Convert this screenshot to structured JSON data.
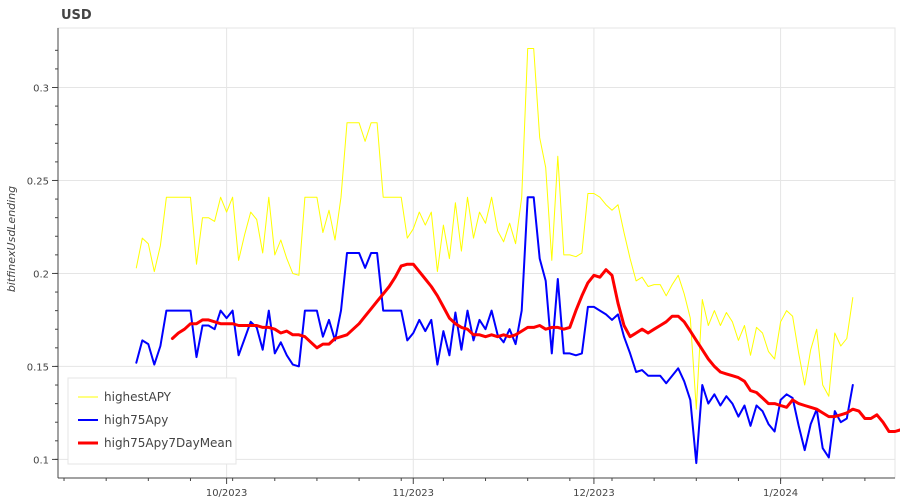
{
  "chart_data": {
    "type": "line",
    "title": "USD",
    "ylabel": "bitfinexUsdLending",
    "xlabel": "",
    "x_ticks": [
      {
        "label": "10/2023",
        "date": "2023-10-01"
      },
      {
        "label": "11/2023",
        "date": "2023-11-01"
      },
      {
        "label": "12/2023",
        "date": "2023-12-01"
      },
      {
        "label": "1/2024",
        "date": "2024-01-01"
      }
    ],
    "y_ticks": [
      "0.1",
      "0.15",
      "0.2",
      "0.25",
      "0.3"
    ],
    "ylim": [
      0.09,
      0.332
    ],
    "xlim": [
      "2023-09-03",
      "2024-01-20"
    ],
    "grid": true,
    "legend_position": "bottom-left",
    "series": [
      {
        "name": "highestAPY",
        "color": "#ffff00",
        "line_width": 1,
        "start_date": "2023-09-16",
        "values": [
          0.203,
          0.219,
          0.216,
          0.201,
          0.215,
          0.241,
          0.241,
          0.241,
          0.241,
          0.241,
          0.205,
          0.23,
          0.23,
          0.228,
          0.241,
          0.233,
          0.241,
          0.207,
          0.221,
          0.233,
          0.229,
          0.211,
          0.241,
          0.21,
          0.218,
          0.208,
          0.2,
          0.199,
          0.241,
          0.241,
          0.241,
          0.222,
          0.234,
          0.218,
          0.241,
          0.281,
          0.281,
          0.281,
          0.271,
          0.281,
          0.281,
          0.241,
          0.241,
          0.241,
          0.241,
          0.219,
          0.224,
          0.233,
          0.226,
          0.233,
          0.201,
          0.226,
          0.208,
          0.238,
          0.212,
          0.241,
          0.219,
          0.233,
          0.227,
          0.241,
          0.223,
          0.217,
          0.227,
          0.216,
          0.241,
          0.321,
          0.321,
          0.273,
          0.257,
          0.207,
          0.263,
          0.21,
          0.21,
          0.209,
          0.211,
          0.243,
          0.243,
          0.241,
          0.237,
          0.234,
          0.237,
          0.222,
          0.208,
          0.196,
          0.198,
          0.193,
          0.194,
          0.194,
          0.188,
          0.194,
          0.199,
          0.189,
          0.176,
          0.127,
          0.186,
          0.172,
          0.18,
          0.172,
          0.179,
          0.174,
          0.164,
          0.172,
          0.156,
          0.171,
          0.168,
          0.158,
          0.154,
          0.174,
          0.18,
          0.177,
          0.157,
          0.14,
          0.159,
          0.17,
          0.14,
          0.134,
          0.168,
          0.161,
          0.165,
          0.187
        ]
      },
      {
        "name": "high75Apy",
        "color": "#0000ff",
        "line_width": 2,
        "start_date": "2023-09-16",
        "values": [
          0.152,
          0.164,
          0.162,
          0.151,
          0.161,
          0.18,
          0.18,
          0.18,
          0.18,
          0.18,
          0.155,
          0.172,
          0.172,
          0.17,
          0.18,
          0.176,
          0.18,
          0.156,
          0.165,
          0.174,
          0.171,
          0.159,
          0.18,
          0.157,
          0.163,
          0.156,
          0.151,
          0.15,
          0.18,
          0.18,
          0.18,
          0.166,
          0.175,
          0.164,
          0.18,
          0.211,
          0.211,
          0.211,
          0.203,
          0.211,
          0.211,
          0.18,
          0.18,
          0.18,
          0.18,
          0.164,
          0.168,
          0.175,
          0.169,
          0.175,
          0.151,
          0.169,
          0.156,
          0.179,
          0.159,
          0.18,
          0.164,
          0.175,
          0.17,
          0.18,
          0.167,
          0.163,
          0.17,
          0.162,
          0.18,
          0.241,
          0.241,
          0.208,
          0.196,
          0.157,
          0.197,
          0.157,
          0.157,
          0.156,
          0.157,
          0.182,
          0.182,
          0.18,
          0.178,
          0.175,
          0.178,
          0.166,
          0.157,
          0.147,
          0.148,
          0.145,
          0.145,
          0.145,
          0.141,
          0.145,
          0.149,
          0.142,
          0.132,
          0.098,
          0.14,
          0.13,
          0.135,
          0.129,
          0.134,
          0.13,
          0.123,
          0.129,
          0.118,
          0.129,
          0.126,
          0.119,
          0.115,
          0.132,
          0.135,
          0.133,
          0.118,
          0.105,
          0.119,
          0.127,
          0.106,
          0.101,
          0.126,
          0.12,
          0.122,
          0.14
        ]
      },
      {
        "name": "high75Apy7DayMean",
        "color": "#ff0000",
        "line_width": 3,
        "start_date": "2023-09-22",
        "values": [
          0.165,
          0.168,
          0.17,
          0.173,
          0.173,
          0.175,
          0.175,
          0.174,
          0.173,
          0.173,
          0.173,
          0.172,
          0.172,
          0.172,
          0.172,
          0.171,
          0.171,
          0.17,
          0.168,
          0.169,
          0.167,
          0.167,
          0.166,
          0.163,
          0.16,
          0.162,
          0.162,
          0.165,
          0.166,
          0.167,
          0.17,
          0.173,
          0.177,
          0.181,
          0.185,
          0.189,
          0.193,
          0.198,
          0.204,
          0.205,
          0.205,
          0.201,
          0.197,
          0.193,
          0.188,
          0.182,
          0.176,
          0.173,
          0.171,
          0.17,
          0.167,
          0.167,
          0.166,
          0.167,
          0.166,
          0.167,
          0.166,
          0.167,
          0.169,
          0.171,
          0.171,
          0.172,
          0.17,
          0.171,
          0.171,
          0.17,
          0.171,
          0.18,
          0.188,
          0.195,
          0.199,
          0.198,
          0.202,
          0.199,
          0.184,
          0.172,
          0.166,
          0.168,
          0.17,
          0.168,
          0.17,
          0.172,
          0.174,
          0.177,
          0.177,
          0.174,
          0.169,
          0.164,
          0.159,
          0.154,
          0.15,
          0.147,
          0.146,
          0.145,
          0.144,
          0.142,
          0.137,
          0.136,
          0.133,
          0.13,
          0.13,
          0.129,
          0.128,
          0.132,
          0.13,
          0.129,
          0.128,
          0.127,
          0.125,
          0.123,
          0.123,
          0.124,
          0.125,
          0.127,
          0.126,
          0.122,
          0.122,
          0.124,
          0.12,
          0.115,
          0.115,
          0.116,
          0.118,
          0.12
        ]
      }
    ]
  }
}
